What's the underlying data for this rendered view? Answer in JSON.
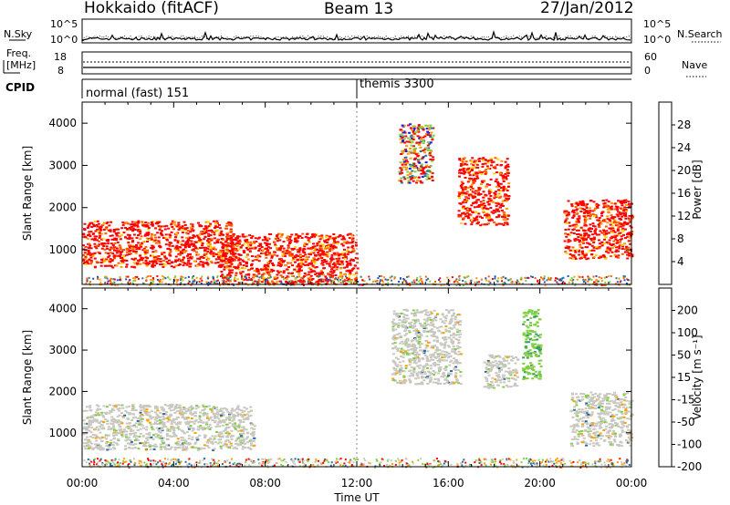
{
  "header": {
    "radar": "Hokkaido (fitACF)",
    "beam": "Beam 13",
    "date": "27/Jan/2012"
  },
  "strips": {
    "nsky_label": "N.Sky",
    "nsky_ticks": [
      "10^5",
      "10^0"
    ],
    "nsearch_label": "N.Search",
    "freq_label_1": "Freq.",
    "freq_label_2": "[MHz]",
    "freq_ticks": [
      "18",
      "8"
    ],
    "nave_ticks": [
      "60",
      "0"
    ],
    "nave_label": "Nave",
    "cpid_label": "CPID",
    "cpid_segments": [
      "normal (fast) 151",
      "themis 3300"
    ]
  },
  "chart_data": [
    {
      "type": "heatmap",
      "panel": "power",
      "ylabel": "Slant Range [km]",
      "ylim": [
        180,
        4500
      ],
      "yticks": [
        1000,
        2000,
        3000,
        4000
      ],
      "xlim": [
        "00:00",
        "24:00"
      ],
      "colorbar": {
        "label": "Power [dB]",
        "ticks": [
          "4",
          "8",
          "12",
          "16",
          "20",
          "24",
          "28"
        ],
        "colors": [
          "#1a1aff",
          "#1f4fbf",
          "#2f7a8a",
          "#3d9a6a",
          "#7fd040",
          "#ffd400",
          "#ff9b00",
          "#ff5a00",
          "#ff0000"
        ]
      },
      "regions": [
        {
          "x": [
            0.0,
            6.6
          ],
          "y": [
            600,
            1700
          ],
          "level": "strong"
        },
        {
          "x": [
            6.0,
            12.0
          ],
          "y": [
            200,
            1400
          ],
          "level": "strong"
        },
        {
          "x": [
            13.8,
            15.3
          ],
          "y": [
            2600,
            4000
          ],
          "level": "mixed"
        },
        {
          "x": [
            16.4,
            18.6
          ],
          "y": [
            1600,
            3200
          ],
          "level": "strong"
        },
        {
          "x": [
            21.0,
            24.0
          ],
          "y": [
            800,
            2200
          ],
          "level": "strong"
        }
      ]
    },
    {
      "type": "heatmap",
      "panel": "velocity",
      "ylabel": "Slant Range [km]",
      "ylim": [
        180,
        4500
      ],
      "yticks": [
        1000,
        2000,
        3000,
        4000
      ],
      "xlim": [
        "00:00",
        "24:00"
      ],
      "xticks": [
        "00:00",
        "04:00",
        "08:00",
        "12:00",
        "16:00",
        "20:00",
        "00:00"
      ],
      "xlabel": "Time UT",
      "colorbar": {
        "label": "Velocity [m s⁻¹]",
        "ticks": [
          "200",
          "100",
          "50",
          "15",
          "-15",
          "-50",
          "-100",
          "-200"
        ],
        "colors": [
          "#1a1acc",
          "#2a6a9a",
          "#3a9a6a",
          "#7fd040",
          "#c8c8c0",
          "#ffa000",
          "#ff6000",
          "#ff0000"
        ]
      },
      "regions": [
        {
          "x": [
            0.0,
            7.5
          ],
          "y": [
            600,
            1700
          ],
          "level": "ground"
        },
        {
          "x": [
            13.5,
            16.5
          ],
          "y": [
            2200,
            4000
          ],
          "level": "ground"
        },
        {
          "x": [
            17.5,
            19.0
          ],
          "y": [
            2100,
            2900
          ],
          "level": "ground"
        },
        {
          "x": [
            19.2,
            20.0
          ],
          "y": [
            2300,
            4000
          ],
          "level": "positive"
        },
        {
          "x": [
            21.3,
            24.0
          ],
          "y": [
            700,
            2000
          ],
          "level": "ground"
        }
      ]
    }
  ]
}
